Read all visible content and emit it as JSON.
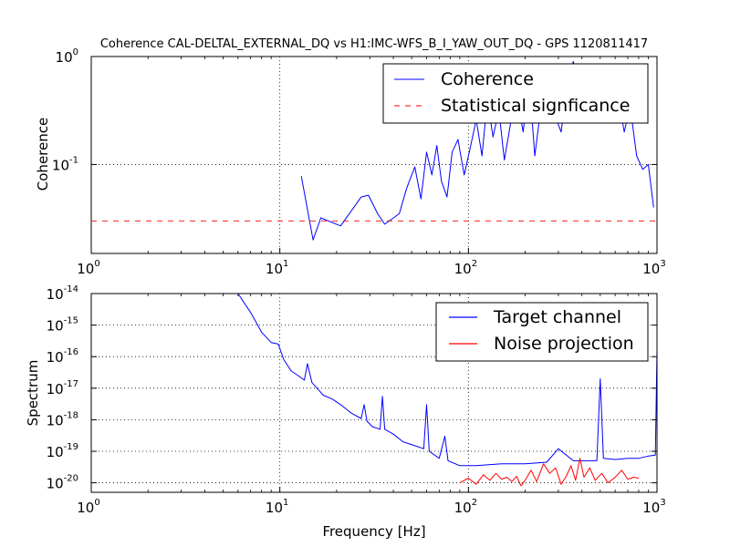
{
  "chart_data": [
    {
      "type": "line",
      "title": "Coherence CAL-DELTAL_EXTERNAL_DQ vs H1:IMC-WFS_B_I_YAW_OUT_DQ - GPS 1120811417",
      "xlabel": "",
      "ylabel": "Coherence",
      "xscale": "log",
      "yscale": "log",
      "xlim": [
        1,
        1000
      ],
      "ylim": [
        0.015,
        1
      ],
      "grid": true,
      "legend_position": "top-right",
      "x_ticks": [
        {
          "base": "10",
          "exp": "0",
          "value": 1
        },
        {
          "base": "10",
          "exp": "1",
          "value": 10
        },
        {
          "base": "10",
          "exp": "2",
          "value": 100
        },
        {
          "base": "10",
          "exp": "3",
          "value": 1000
        }
      ],
      "y_ticks": [
        {
          "base": "10",
          "exp": "-1",
          "value": 0.1
        },
        {
          "base": "10",
          "exp": "0",
          "value": 1
        }
      ],
      "series": [
        {
          "name": "Coherence",
          "color": "#0000ff",
          "style": "solid",
          "x": [
            13.0,
            15.0,
            16.5,
            21.0,
            27.0,
            29.5,
            33.0,
            36.0,
            43.0,
            47.0,
            52.0,
            56.0,
            60.0,
            64.0,
            68.0,
            72.0,
            77.0,
            82.0,
            88.0,
            95.0,
            102.0,
            110.0,
            118.0,
            126.0,
            135.0,
            145.0,
            155.0,
            168.0,
            180.0,
            195.0,
            210.0,
            225.0,
            245.0,
            265.0,
            285.0,
            310.0,
            335.0,
            360.0,
            390.0,
            420.0,
            455.0,
            490.0,
            530.0,
            575.0,
            620.0,
            670.0,
            720.0,
            780.0,
            840.0,
            900.0,
            960.0
          ],
          "y": [
            0.078,
            0.02,
            0.032,
            0.027,
            0.05,
            0.052,
            0.035,
            0.028,
            0.035,
            0.06,
            0.095,
            0.048,
            0.13,
            0.08,
            0.15,
            0.07,
            0.05,
            0.13,
            0.17,
            0.08,
            0.14,
            0.26,
            0.12,
            0.4,
            0.18,
            0.32,
            0.11,
            0.25,
            0.45,
            0.2,
            0.6,
            0.12,
            0.4,
            0.7,
            0.3,
            0.2,
            0.55,
            0.9,
            0.35,
            0.7,
            0.5,
            0.25,
            0.6,
            0.3,
            0.45,
            0.2,
            0.35,
            0.12,
            0.09,
            0.1,
            0.04
          ]
        },
        {
          "name": "Statistical signficance",
          "color": "#ff0000",
          "style": "dashed",
          "x": [
            1,
            1000
          ],
          "y": [
            0.03,
            0.03
          ]
        }
      ]
    },
    {
      "type": "line",
      "title": "",
      "xlabel": "Frequency [Hz]",
      "ylabel": "Spectrum",
      "xscale": "log",
      "yscale": "log",
      "xlim": [
        1,
        1000
      ],
      "ylim": [
        5e-21,
        1e-14
      ],
      "grid": true,
      "legend_position": "top-right",
      "x_ticks": [
        {
          "base": "10",
          "exp": "0",
          "value": 1
        },
        {
          "base": "10",
          "exp": "1",
          "value": 10
        },
        {
          "base": "10",
          "exp": "2",
          "value": 100
        },
        {
          "base": "10",
          "exp": "3",
          "value": 1000
        }
      ],
      "y_ticks": [
        {
          "base": "10",
          "exp": "-20",
          "value": 1e-20
        },
        {
          "base": "10",
          "exp": "-19",
          "value": 1e-19
        },
        {
          "base": "10",
          "exp": "-18",
          "value": 1e-18
        },
        {
          "base": "10",
          "exp": "-17",
          "value": 1e-17
        },
        {
          "base": "10",
          "exp": "-16",
          "value": 1e-16
        },
        {
          "base": "10",
          "exp": "-15",
          "value": 1e-15
        },
        {
          "base": "10",
          "exp": "-14",
          "value": 1e-14
        }
      ],
      "series": [
        {
          "name": "Target channel",
          "color": "#0000ff",
          "style": "solid",
          "x": [
            6.0,
            7.0,
            8.0,
            9.0,
            9.8,
            10.5,
            11.5,
            12.5,
            13.5,
            14.0,
            14.8,
            16.0,
            17.0,
            19.0,
            21.0,
            24.0,
            27.0,
            28.0,
            29.0,
            31.0,
            34.0,
            35.0,
            36.0,
            40.0,
            45.0,
            52.0,
            58.0,
            60.0,
            62.0,
            70.0,
            75.0,
            78.0,
            90.0,
            110.0,
            150.0,
            200.0,
            260.0,
            300.0,
            360.0,
            420.0,
            480.0,
            500.0,
            520.0,
            600.0,
            700.0,
            800.0,
            900.0,
            980.0,
            1000.0
          ],
          "y": [
            1e-14,
            2.5e-15,
            6e-16,
            2.8e-16,
            2.5e-16,
            8e-17,
            3.5e-17,
            2.5e-17,
            1.8e-17,
            6e-17,
            1.5e-17,
            9e-18,
            6e-18,
            4.5e-18,
            3e-18,
            1.6e-18,
            1.1e-18,
            3e-18,
            9e-19,
            6e-19,
            5e-19,
            5.5e-18,
            5e-19,
            3.5e-19,
            2e-19,
            1.5e-19,
            1.2e-19,
            3e-18,
            1e-19,
            6e-20,
            3e-19,
            5e-20,
            3.5e-20,
            3.5e-20,
            4e-20,
            4e-20,
            4.5e-20,
            1.2e-19,
            5e-20,
            5e-20,
            5e-20,
            2e-17,
            6e-20,
            5.5e-20,
            6e-20,
            6e-20,
            7e-20,
            7.5e-20,
            1.5e-16
          ]
        },
        {
          "name": "Noise projection",
          "color": "#ff0000",
          "style": "solid",
          "x": [
            90,
            100,
            110,
            120,
            130,
            140,
            150,
            160,
            170,
            180,
            190,
            200,
            215,
            230,
            250,
            270,
            290,
            310,
            330,
            350,
            370,
            390,
            410,
            440,
            470,
            510,
            550,
            600,
            650,
            700,
            750,
            800
          ],
          "y": [
            1e-20,
            1.4e-20,
            9e-21,
            1.8e-20,
            1.2e-20,
            2e-20,
            1.3e-20,
            1.5e-20,
            1.1e-20,
            1.6e-20,
            8e-21,
            1.2e-20,
            2.5e-20,
            1.1e-20,
            4e-20,
            2e-20,
            3e-20,
            9e-21,
            1.6e-20,
            3.5e-20,
            1.2e-20,
            6e-20,
            1.5e-20,
            3e-20,
            1.2e-20,
            2e-20,
            1e-20,
            1.5e-20,
            2.5e-20,
            1.3e-20,
            1.5e-20,
            1.4e-20
          ]
        }
      ]
    }
  ]
}
